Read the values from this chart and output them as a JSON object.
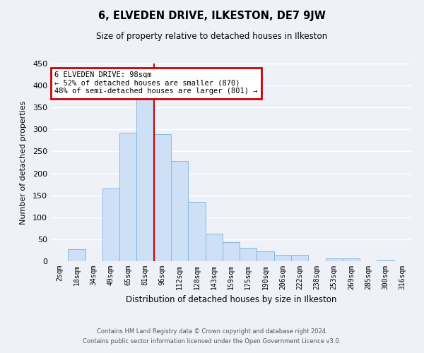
{
  "title": "6, ELVEDEN DRIVE, ILKESTON, DE7 9JW",
  "subtitle": "Size of property relative to detached houses in Ilkeston",
  "xlabel": "Distribution of detached houses by size in Ilkeston",
  "ylabel": "Number of detached properties",
  "categories": [
    "2sqm",
    "18sqm",
    "34sqm",
    "49sqm",
    "65sqm",
    "81sqm",
    "96sqm",
    "112sqm",
    "128sqm",
    "143sqm",
    "159sqm",
    "175sqm",
    "190sqm",
    "206sqm",
    "222sqm",
    "238sqm",
    "253sqm",
    "269sqm",
    "285sqm",
    "300sqm",
    "316sqm"
  ],
  "bar_heights": [
    0,
    28,
    0,
    165,
    293,
    368,
    290,
    228,
    135,
    62,
    43,
    30,
    23,
    14,
    14,
    0,
    7,
    7,
    0,
    3,
    0
  ],
  "bar_color": "#cde0f5",
  "bar_edge_color": "#88b8e0",
  "reference_line_x": 6.0,
  "reference_line_color": "#cc0000",
  "ylim": [
    0,
    450
  ],
  "yticks": [
    0,
    50,
    100,
    150,
    200,
    250,
    300,
    350,
    400,
    450
  ],
  "annotation_title": "6 ELVEDEN DRIVE: 98sqm",
  "annotation_line1": "← 52% of detached houses are smaller (870)",
  "annotation_line2": "48% of semi-detached houses are larger (801) →",
  "annotation_box_color": "#cc0000",
  "footer_line1": "Contains HM Land Registry data © Crown copyright and database right 2024.",
  "footer_line2": "Contains public sector information licensed under the Open Government Licence v3.0.",
  "bg_color": "#eef2f8",
  "grid_color": "#ffffff"
}
